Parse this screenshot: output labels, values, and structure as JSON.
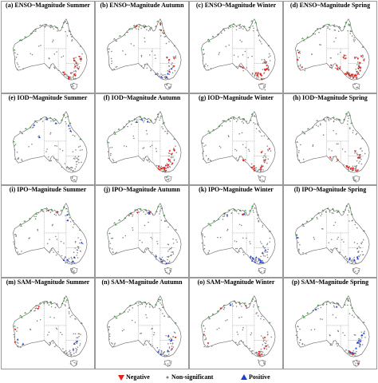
{
  "panels": [
    {
      "title": "(a) ENSO~Magnitude Summer",
      "season": "summer",
      "index": "ENSO"
    },
    {
      "title": "(b) ENSO~Magnitude Autumn",
      "season": "autumn",
      "index": "ENSO"
    },
    {
      "title": "(c) ENSO~Magnitude Winter",
      "season": "winter",
      "index": "ENSO"
    },
    {
      "title": "(d) ENSO~Magnitude Spring",
      "season": "spring",
      "index": "ENSO"
    },
    {
      "title": "(e) IOD~Magnitude Summer",
      "season": "summer",
      "index": "IOD"
    },
    {
      "title": "(f) IOD~Magnitude Autumn",
      "season": "autumn",
      "index": "IOD"
    },
    {
      "title": "(g) IOD~Magnitude Winter",
      "season": "winter",
      "index": "IOD"
    },
    {
      "title": "(h) IOD~Magnitude Spring",
      "season": "spring",
      "index": "IOD"
    },
    {
      "title": "(i) IPO~Magnitude Summer",
      "season": "summer",
      "index": "IPO"
    },
    {
      "title": "(j) IPO~Magnitude Autumn",
      "season": "autumn",
      "index": "IPO"
    },
    {
      "title": "(k) IPO~Magnitude Winter",
      "season": "winter",
      "index": "IPO"
    },
    {
      "title": "(l) IPO~Magnitude Spring",
      "season": "spring",
      "index": "IPO"
    },
    {
      "title": "(m) SAM~Magnitude Summer",
      "season": "summer",
      "index": "SAM"
    },
    {
      "title": "(n) SAM~Magnitude Autumn",
      "season": "autumn",
      "index": "SAM"
    },
    {
      "title": "(o) SAM~Magnitude Winter",
      "season": "winter",
      "index": "SAM"
    },
    {
      "title": "(p) SAM~Magnitude Spring",
      "season": "spring",
      "index": "SAM"
    }
  ],
  "legend": {
    "negative": "Negative",
    "non_significant": "Non-significant",
    "positive": "Positive"
  },
  "colors": {
    "negative": "#e3201b",
    "non_significant": "#808080",
    "positive": "#1f3fd6",
    "state_border": "#7a7a7a",
    "coast": "#6e6e6e",
    "vegetation": "#2e8b2e"
  }
}
